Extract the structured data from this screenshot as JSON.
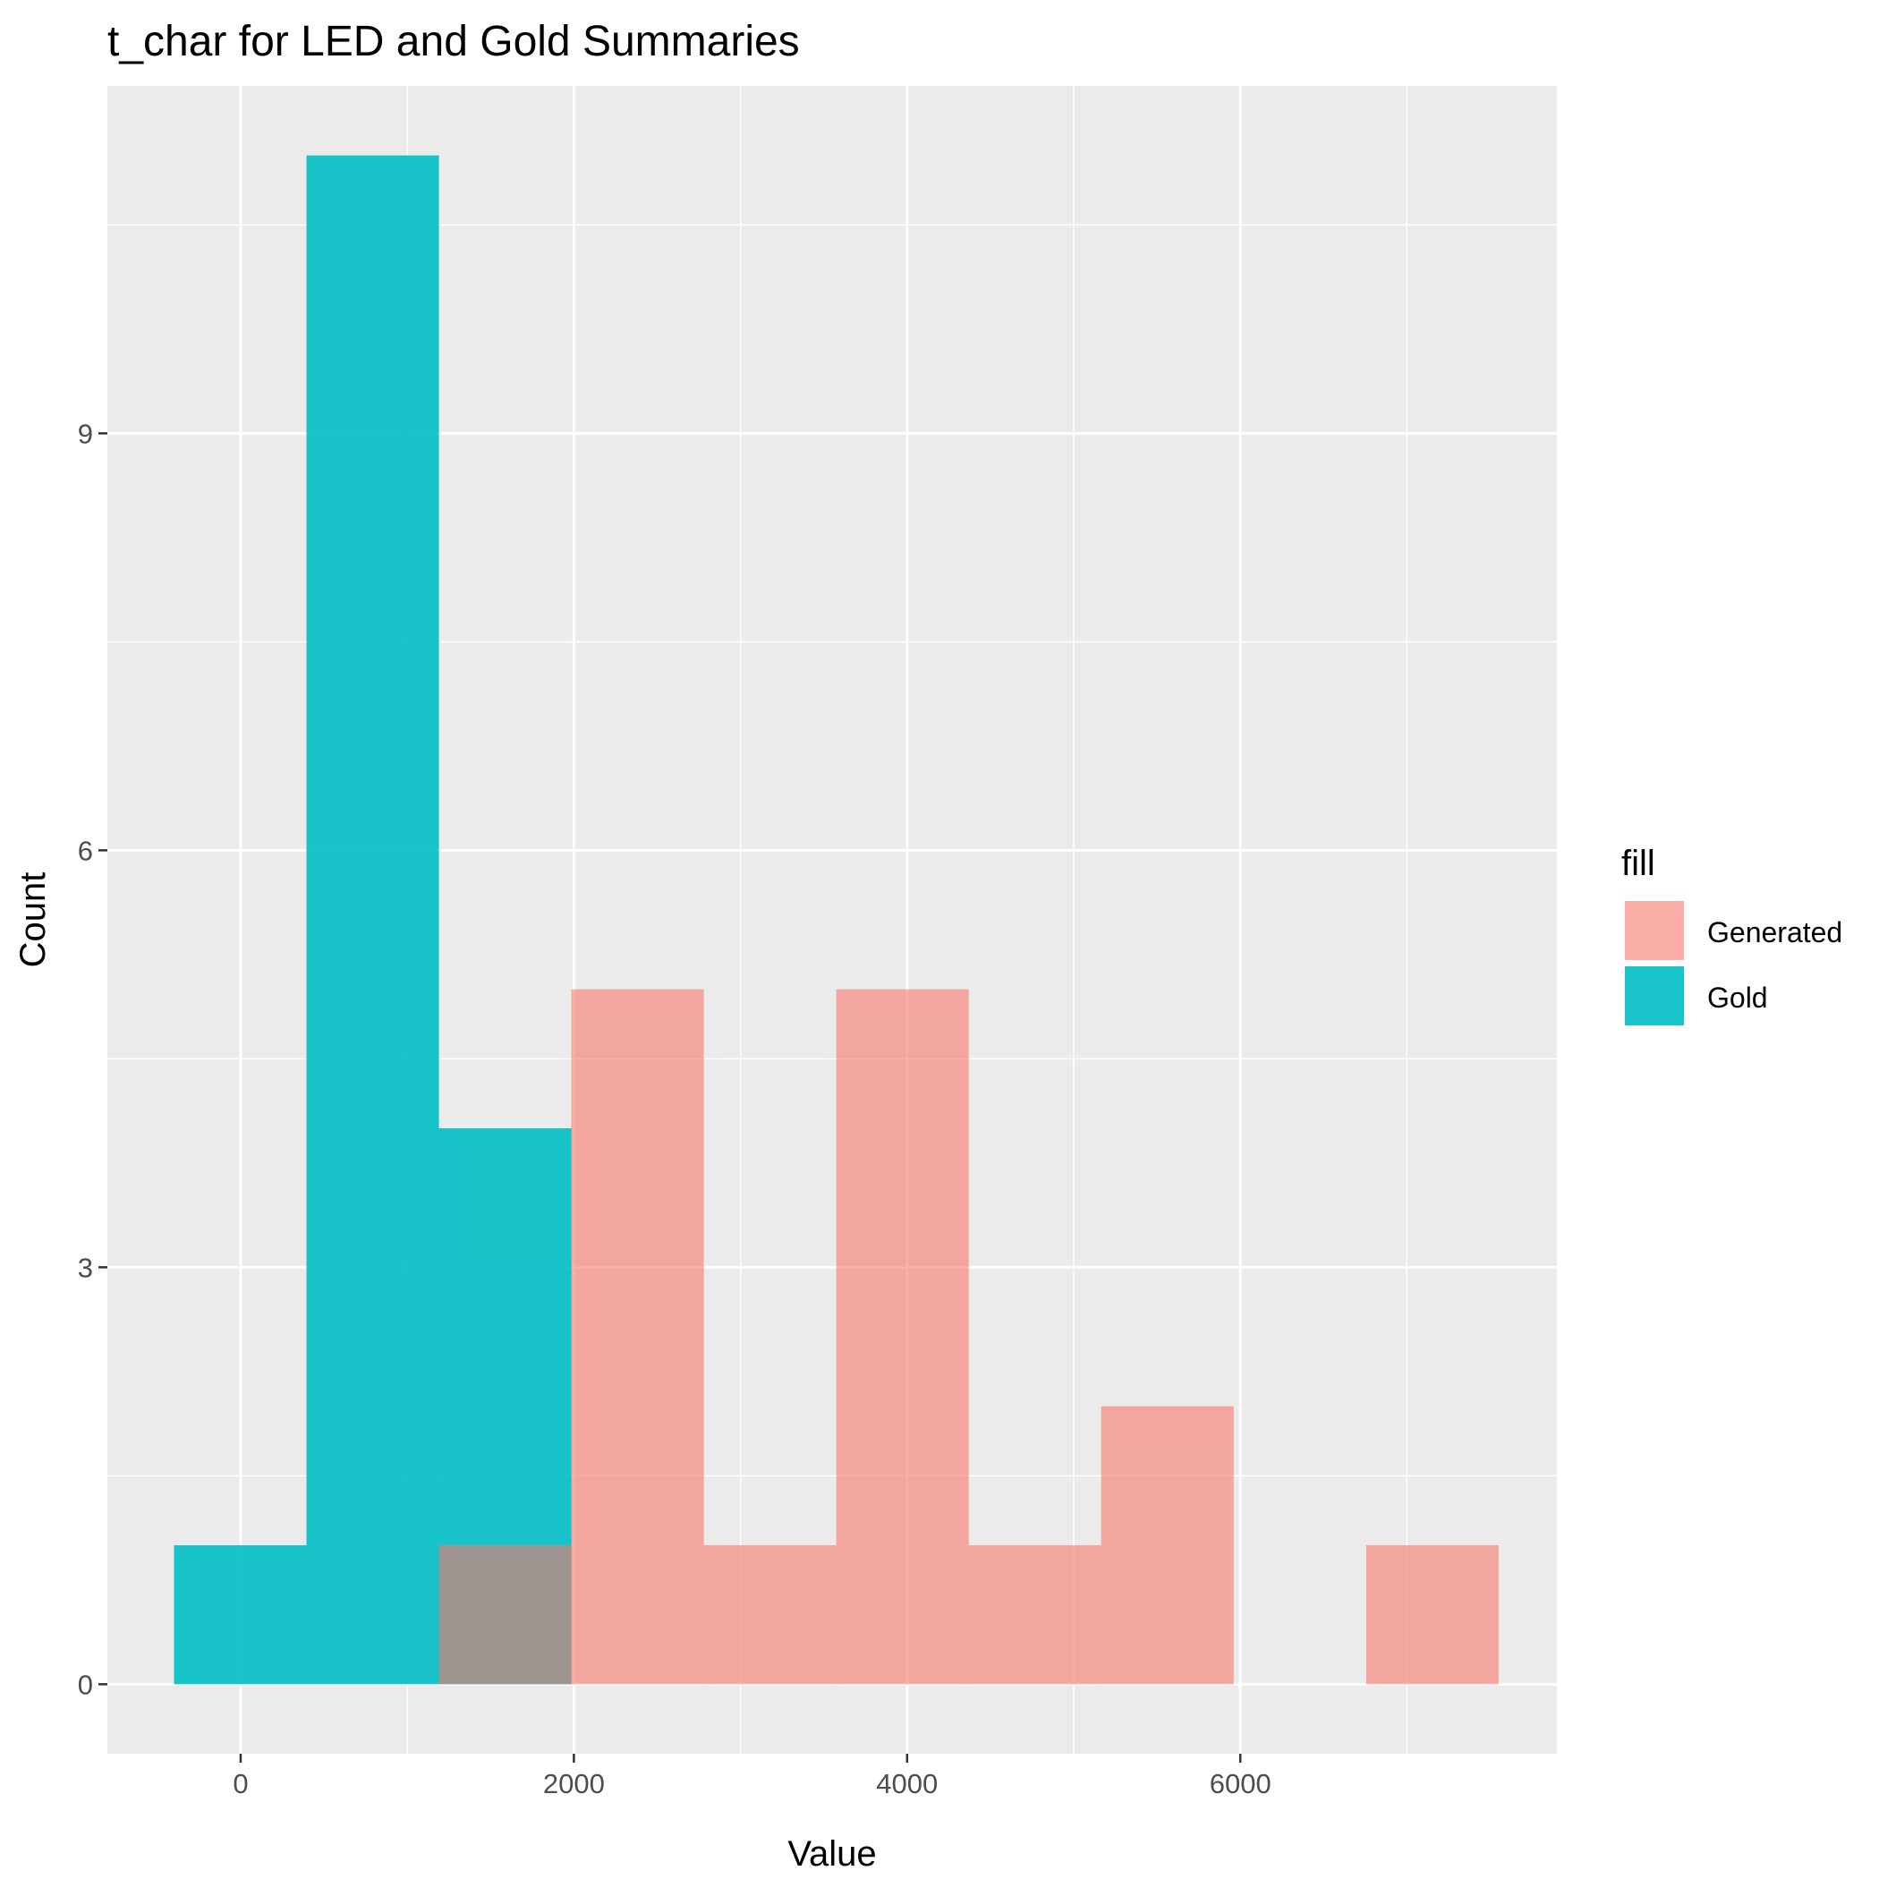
{
  "chart_data": {
    "type": "histogram",
    "title": "t_char for LED and Gold Summaries",
    "xlabel": "Value",
    "ylabel": "Count",
    "xlim": [
      -800,
      7900
    ],
    "ylim": [
      -0.5,
      11.5
    ],
    "x_ticks": [
      0,
      2000,
      4000,
      6000
    ],
    "x_tick_labels": [
      "0",
      "2000",
      "4000",
      "6000"
    ],
    "y_ticks": [
      0,
      3,
      6,
      9
    ],
    "y_tick_labels": [
      "0",
      "3",
      "6",
      "9"
    ],
    "grid": true,
    "legend": {
      "title": "fill",
      "position": "right",
      "entries": [
        "Generated",
        "Gold"
      ]
    },
    "bin_edges": [
      -400,
      395,
      1190,
      1985,
      2780,
      3575,
      4370,
      5165,
      5960,
      6755,
      7550
    ],
    "series": [
      {
        "name": "Gold",
        "color": "#00BFC4",
        "counts": [
          1,
          11,
          4,
          0,
          0,
          0,
          0,
          0,
          0,
          0
        ]
      },
      {
        "name": "Generated",
        "color": "#F8766D",
        "counts": [
          0,
          0,
          1,
          5,
          1,
          5,
          1,
          2,
          0,
          1
        ]
      }
    ]
  }
}
